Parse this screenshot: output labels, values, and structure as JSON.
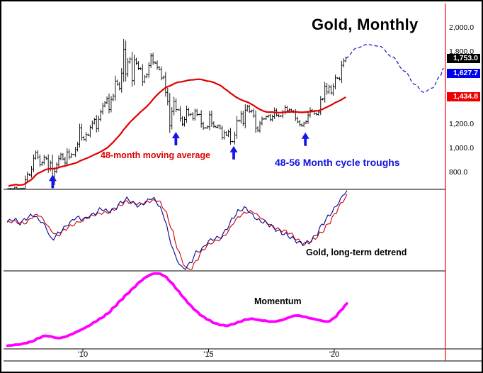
{
  "window": {
    "background": "#ffffff",
    "border_color": "#000000",
    "axis_color": "#ff0000"
  },
  "chart_data": {
    "type": "mixed",
    "title": "Gold, Monthly",
    "grid": "off",
    "legend": "none",
    "x_axis": {
      "start_year": 2007.0,
      "end_year": 2024.4,
      "ticks": [
        {
          "label": "'10",
          "year": 2010
        },
        {
          "label": "'15",
          "year": 2015
        },
        {
          "label": "'20",
          "year": 2020
        }
      ]
    },
    "panels": [
      {
        "name": "price",
        "ylim": [
          620,
          2210
        ],
        "y_ticks": [
          {
            "label": "2,000.0",
            "value": 2000
          },
          {
            "label": "1,800.0",
            "value": 1800
          },
          {
            "label": "1,200.0",
            "value": 1200
          },
          {
            "label": "1,000.0",
            "value": 1000
          },
          {
            "label": "800.0",
            "value": 800
          }
        ],
        "price_flags": [
          {
            "label": "1,753.0",
            "value": 1753.0,
            "bg": "#000000",
            "fg": "#ffffff"
          },
          {
            "label": "1,627.7",
            "value": 1627.7,
            "bg": "#0000ee",
            "fg": "#ffffff"
          },
          {
            "label": "1,434.8",
            "value": 1434.8,
            "bg": "#ee0000",
            "fg": "#ffffff"
          }
        ],
        "series": [
          {
            "name": "gold-monthly-bars",
            "type": "ohlc_bar",
            "color": "#000000",
            "start_year": 2007.0,
            "step_months": 1,
            "close": [
              651,
              665,
              663,
              677,
              659,
              650,
              665,
              672,
              743,
              789,
              783,
              833,
              923,
              971,
              933,
              871,
              885,
              930,
              918,
              833,
              884,
              730,
              814,
              869,
              919,
              952,
              916,
              883,
              975,
              934,
              953,
              953,
              995,
              1040,
              1175,
              1096,
              1078,
              1118,
              1113,
              1179,
              1215,
              1244,
              1169,
              1246,
              1307,
              1357,
              1383,
              1421,
              1327,
              1411,
              1439,
              1563,
              1536,
              1502,
              1628,
              1826,
              1622,
              1722,
              1746,
              1566,
              1738,
              1711,
              1668,
              1664,
              1558,
              1598,
              1615,
              1691,
              1772,
              1719,
              1712,
              1676,
              1661,
              1588,
              1597,
              1469,
              1394,
              1192,
              1311,
              1394,
              1327,
              1323,
              1253,
              1205,
              1244,
              1326,
              1283,
              1288,
              1250,
              1315,
              1285,
              1285,
              1208,
              1173,
              1175,
              1184,
              1283,
              1213,
              1187,
              1180,
              1191,
              1172,
              1095,
              1135,
              1115,
              1142,
              1061,
              1060,
              1116,
              1234,
              1232,
              1290,
              1212,
              1322,
              1351,
              1309,
              1317,
              1273,
              1173,
              1152,
              1212,
              1248,
              1249,
              1268,
              1275,
              1242,
              1267,
              1321,
              1280,
              1271,
              1273,
              1303,
              1345,
              1318,
              1325,
              1315,
              1305,
              1253,
              1224,
              1201,
              1192,
              1215,
              1226,
              1281,
              1321,
              1313,
              1292,
              1286,
              1306,
              1410,
              1414,
              1520,
              1472,
              1513,
              1464,
              1517,
              1589,
              1586,
              1577,
              1694,
              1730,
              1753
            ]
          },
          {
            "name": "48-month moving average",
            "type": "line",
            "color": "#dd0000",
            "derived": "ma48_of_close"
          },
          {
            "name": "cycle-projection",
            "type": "dashed_line",
            "color": "#2222cc",
            "points": [
              [
                2020.45,
                1753
              ],
              [
                2020.9,
                1838
              ],
              [
                2021.3,
                1866
              ],
              [
                2021.8,
                1852
              ],
              [
                2022.3,
                1765
              ],
              [
                2022.8,
                1645
              ],
              [
                2023.2,
                1535
              ],
              [
                2023.55,
                1470
              ],
              [
                2023.9,
                1505
              ],
              [
                2024.2,
                1600
              ],
              [
                2024.35,
                1670
              ]
            ]
          }
        ],
        "annotations": {
          "ma_text": {
            "text": "48-month moving average",
            "color": "#dd0000"
          },
          "troughs_text": {
            "text": "48-56 Month cycle troughs",
            "color": "#1111dd"
          },
          "arrow_color": "#1515e8",
          "trough_arrows": [
            {
              "year": 2008.8,
              "price": 810
            },
            {
              "year": 2013.7,
              "price": 1165
            },
            {
              "year": 2016.0,
              "price": 1048
            },
            {
              "year": 2018.85,
              "price": 1160
            }
          ]
        }
      },
      {
        "name": "detrend",
        "label": "Gold, long-term detrend",
        "start_year": 2007.0,
        "step_years": 0.25,
        "ylim": [
          -30,
          27
        ],
        "series": [
          {
            "name": "detrend-fast",
            "type": "line",
            "color": "#000090",
            "values": [
              5,
              6,
              4,
              8,
              10,
              6,
              2,
              -6,
              -2,
              1,
              4,
              8,
              7,
              9,
              10,
              13,
              12,
              14,
              17,
              19,
              17,
              16,
              18,
              20,
              16,
              8,
              -8,
              -20,
              -26,
              -22,
              -14,
              -12,
              -8,
              -6,
              -4,
              2,
              8,
              12,
              14,
              10,
              6,
              4,
              2,
              0,
              -2,
              -5,
              -8,
              -9,
              -7,
              -4,
              2,
              8,
              14,
              20,
              25
            ]
          },
          {
            "name": "detrend-slow",
            "type": "line",
            "color": "#cc0000",
            "values": [
              4,
              5,
              5,
              5,
              8,
              9,
              5,
              0,
              -4,
              -1,
              2,
              5,
              7,
              8,
              9,
              11,
              12,
              13,
              15,
              18,
              18,
              17,
              17,
              18,
              19,
              14,
              2,
              -12,
              -22,
              -26,
              -20,
              -14,
              -10,
              -7,
              -5,
              -2,
              4,
              9,
              12,
              12,
              8,
              5,
              3,
              1,
              -1,
              -3,
              -6,
              -8,
              -8,
              -6,
              -2,
              4,
              10,
              16,
              21
            ]
          }
        ]
      },
      {
        "name": "momentum",
        "label": "Momentum",
        "start_year": 2007.0,
        "step_years": 0.25,
        "ylim": [
          0,
          100
        ],
        "series": [
          {
            "name": "momentum",
            "type": "line",
            "color": "#ff00ff",
            "values": [
              2,
              3,
              4,
              6,
              8,
              12,
              15,
              14,
              12,
              13,
              16,
              20,
              24,
              28,
              33,
              38,
              44,
              52,
              60,
              68,
              76,
              84,
              90,
              94,
              95,
              92,
              84,
              74,
              64,
              55,
              47,
              40,
              35,
              31,
              29,
              28,
              30,
              33,
              36,
              37,
              35,
              34,
              33,
              34,
              36,
              39,
              41,
              40,
              38,
              36,
              34,
              33,
              38,
              47,
              56
            ]
          }
        ]
      }
    ]
  }
}
